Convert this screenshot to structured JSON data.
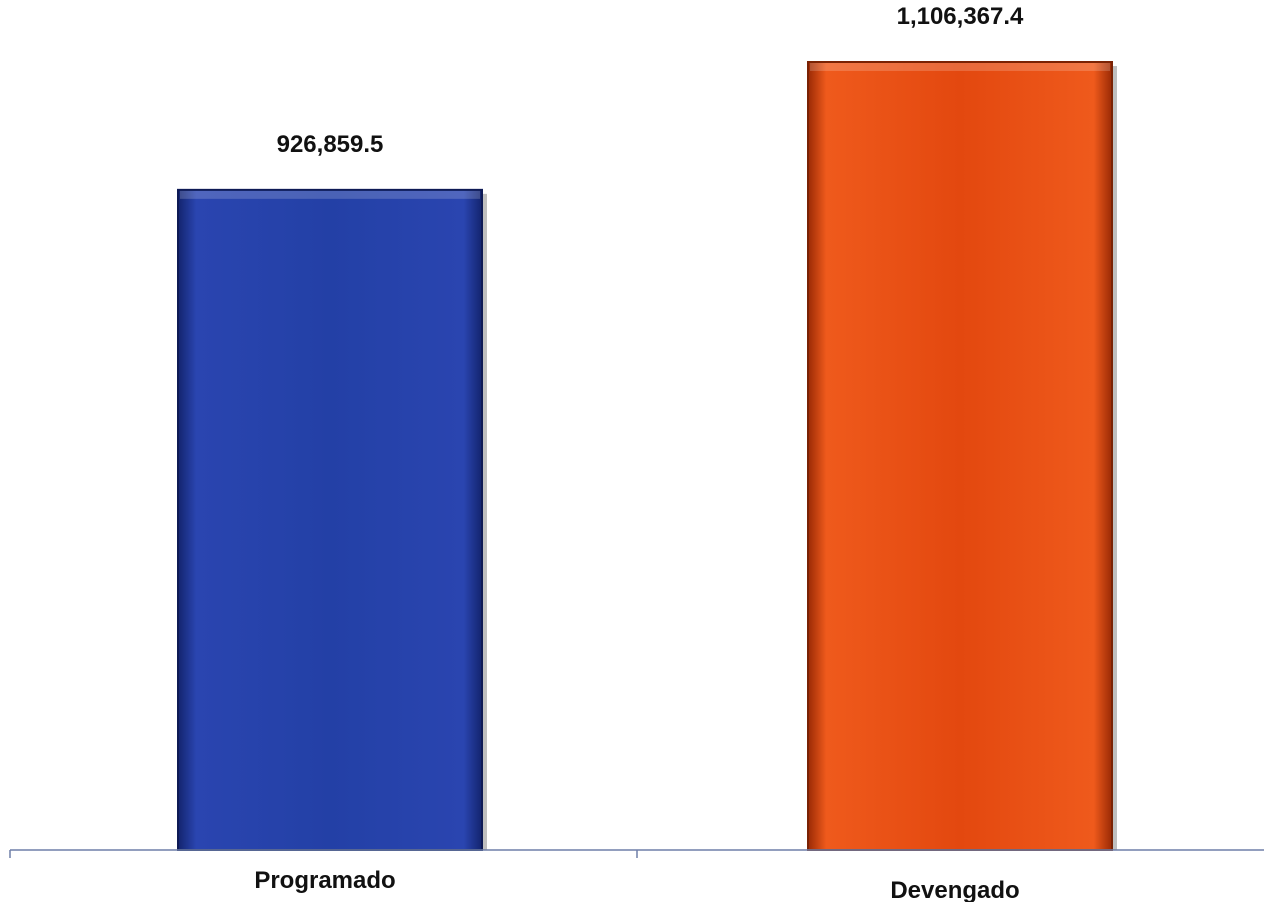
{
  "chart_data": {
    "type": "bar",
    "categories": [
      "Programado",
      "Devengado"
    ],
    "values": [
      926859.5,
      1106367.4
    ],
    "value_labels": [
      "926,859.5",
      "1,106,367.4"
    ],
    "colors": [
      "#1f3aa0",
      "#e0450f"
    ],
    "title": "",
    "xlabel": "",
    "ylabel": "",
    "ylim": [
      0,
      1106367.4
    ],
    "grid": false,
    "legend": "none"
  }
}
